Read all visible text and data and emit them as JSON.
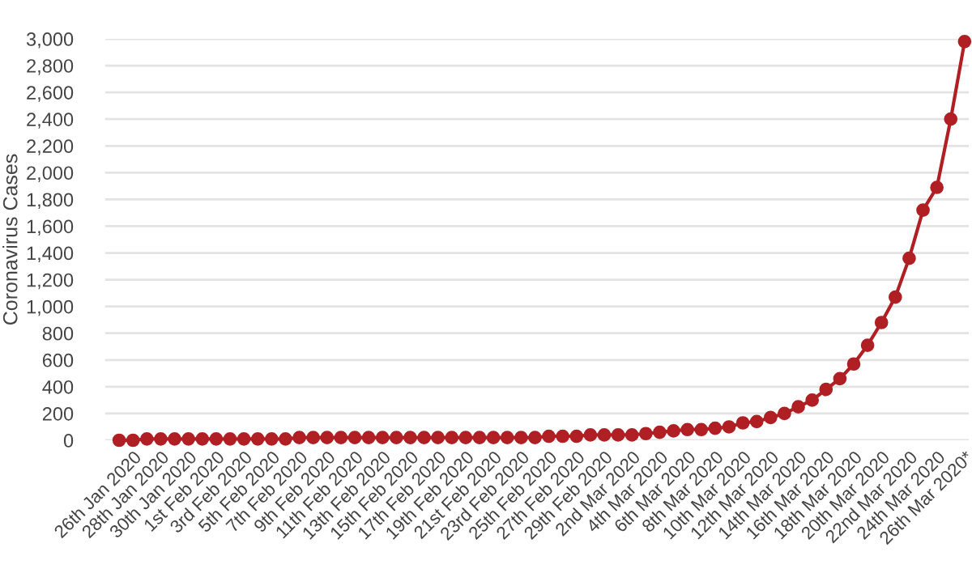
{
  "chart_data": {
    "type": "line",
    "ylabel": "Coronavirus Cases",
    "categories": [
      null,
      "26th Jan 2020",
      null,
      "28th Jan 2020",
      null,
      "30th Jan 2020",
      null,
      "1st Feb 2020",
      null,
      "3rd Feb 2020",
      null,
      "5th Feb 2020",
      null,
      "7th Feb 2020",
      null,
      "9th Feb 2020",
      null,
      "11th Feb 2020",
      null,
      "13th Feb 2020",
      null,
      "15th Feb 2020",
      null,
      "17th Feb 2020",
      null,
      "19th Feb 2020",
      null,
      "21st Feb 2020",
      null,
      "23rd Feb 2020",
      null,
      "25th Feb 2020",
      null,
      "27th Feb 2020",
      null,
      "29th Feb 2020",
      null,
      "2nd Mar 2020",
      null,
      "4th Mar 2020",
      null,
      "6th Mar 2020",
      null,
      "8th Mar 2020",
      null,
      "10th Mar 2020",
      null,
      "12th Mar 2020",
      null,
      "14th Mar 2020",
      null,
      "16th Mar 2020",
      null,
      "18th Mar 2020",
      null,
      "20th Mar 2020",
      null,
      "22nd Mar 2020",
      null,
      "24th Mar 2020",
      null,
      "26th Mar 2020*"
    ],
    "series": [
      {
        "color": "#b01f24",
        "values": [
          0,
          0,
          10,
          10,
          10,
          10,
          10,
          10,
          10,
          10,
          10,
          10,
          10,
          20,
          20,
          20,
          20,
          20,
          20,
          20,
          20,
          20,
          20,
          20,
          20,
          20,
          20,
          20,
          20,
          20,
          20,
          30,
          30,
          30,
          40,
          40,
          40,
          40,
          50,
          60,
          70,
          80,
          80,
          90,
          100,
          130,
          140,
          170,
          200,
          250,
          300,
          380,
          460,
          570,
          710,
          880,
          1070,
          1360,
          1720,
          1890,
          2400,
          2980
        ]
      }
    ],
    "ylim": [
      0,
      3000
    ],
    "yticks": [
      {
        "value": 0,
        "label": "0"
      },
      {
        "value": 200,
        "label": "200"
      },
      {
        "value": 400,
        "label": "400"
      },
      {
        "value": 600,
        "label": "600"
      },
      {
        "value": 800,
        "label": "800"
      },
      {
        "value": 1000,
        "label": "1,000"
      },
      {
        "value": 1200,
        "label": "1,200"
      },
      {
        "value": 1400,
        "label": "1,400"
      },
      {
        "value": 1600,
        "label": "1,600"
      },
      {
        "value": 1800,
        "label": "1,800"
      },
      {
        "value": 2000,
        "label": "2,000"
      },
      {
        "value": 2200,
        "label": "2,200"
      },
      {
        "value": 2400,
        "label": "2,400"
      },
      {
        "value": 2600,
        "label": "2,600"
      },
      {
        "value": 2800,
        "label": "2,800"
      },
      {
        "value": 3000,
        "label": "3,000"
      }
    ],
    "grid": "y",
    "marker": "circle",
    "line_style": "solid"
  }
}
